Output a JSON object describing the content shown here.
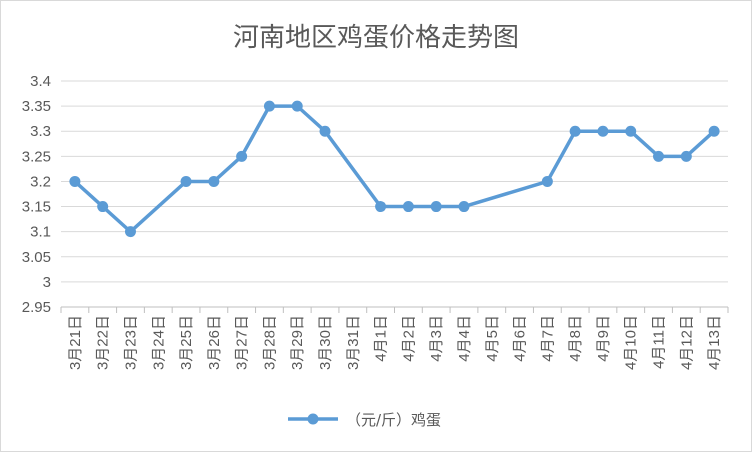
{
  "chart_data": {
    "type": "line",
    "title": "河南地区鸡蛋价格走势图",
    "xlabel": "",
    "ylabel": "",
    "categories": [
      "3月21日",
      "3月22日",
      "3月23日",
      "3月24日",
      "3月25日",
      "3月26日",
      "3月27日",
      "3月28日",
      "3月29日",
      "3月30日",
      "3月31日",
      "4月1日",
      "4月2日",
      "4月3日",
      "4月4日",
      "4月5日",
      "4月6日",
      "4月7日",
      "4月8日",
      "4月9日",
      "4月10日",
      "4月11日",
      "4月12日",
      "4月13日"
    ],
    "series": [
      {
        "name": "（元/斤）鸡蛋",
        "color": "#5b9bd5",
        "values": [
          3.2,
          3.15,
          3.1,
          null,
          3.2,
          3.2,
          3.25,
          3.35,
          3.35,
          3.3,
          null,
          3.15,
          3.15,
          3.15,
          3.15,
          null,
          null,
          3.2,
          3.3,
          3.3,
          3.3,
          3.25,
          3.25,
          3.3
        ]
      }
    ],
    "ylim": [
      2.95,
      3.4
    ],
    "yticks": [
      "3.4",
      "3.35",
      "3.3",
      "3.25",
      "3.2",
      "3.15",
      "3.1",
      "3.05",
      "3",
      "2.95"
    ],
    "grid": true,
    "legend": "bottom-center",
    "gridline_color": "#d9d9d9",
    "axis_color": "#bfbfbf"
  }
}
